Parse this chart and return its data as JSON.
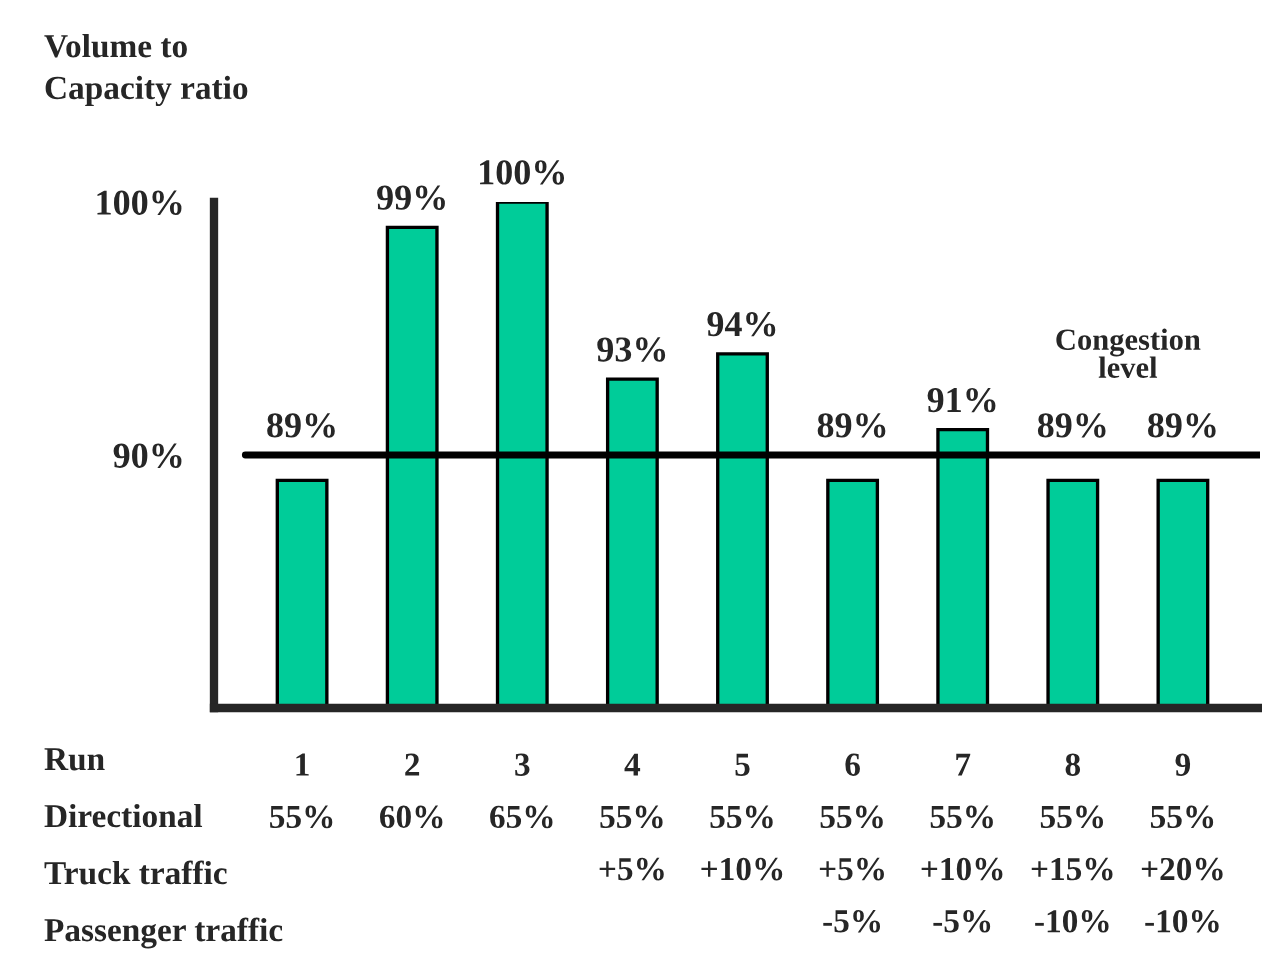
{
  "chart_data": {
    "type": "bar",
    "ylabel": "Volume to\nCapacity ratio",
    "xlabel": "Run",
    "categories": [
      "1\n55%\n\n",
      "2\n60%\n\n",
      "3\n65%\n\n",
      "4\n55%\n+5%\n",
      "5\n55%\n+10%\n",
      "6\n55%\n+5%\n-5%",
      "7\n55%\n+10%\n-5%",
      "8\n55%\n+15%\n-10%",
      "9\n55%\n+20%\n-10%"
    ],
    "values": [
      89,
      99,
      100,
      93,
      94,
      89,
      91,
      89,
      89
    ],
    "value_labels": [
      "89%",
      "99%",
      "100%",
      "93%",
      "94%",
      "89%",
      "91%",
      "89%",
      "89%"
    ],
    "color": "#00cc99",
    "ylim": [
      80,
      100
    ],
    "yticks": [
      {
        "value": 90,
        "label": "90%"
      },
      {
        "value": 100,
        "label": "100%"
      }
    ],
    "ref_lines": [
      {
        "axis": "y",
        "value": 90,
        "label": "Congestion\nlevel",
        "color": "#000000"
      }
    ],
    "annotations": [
      "Directional",
      "Truck traffic",
      "Passenger traffic"
    ]
  }
}
